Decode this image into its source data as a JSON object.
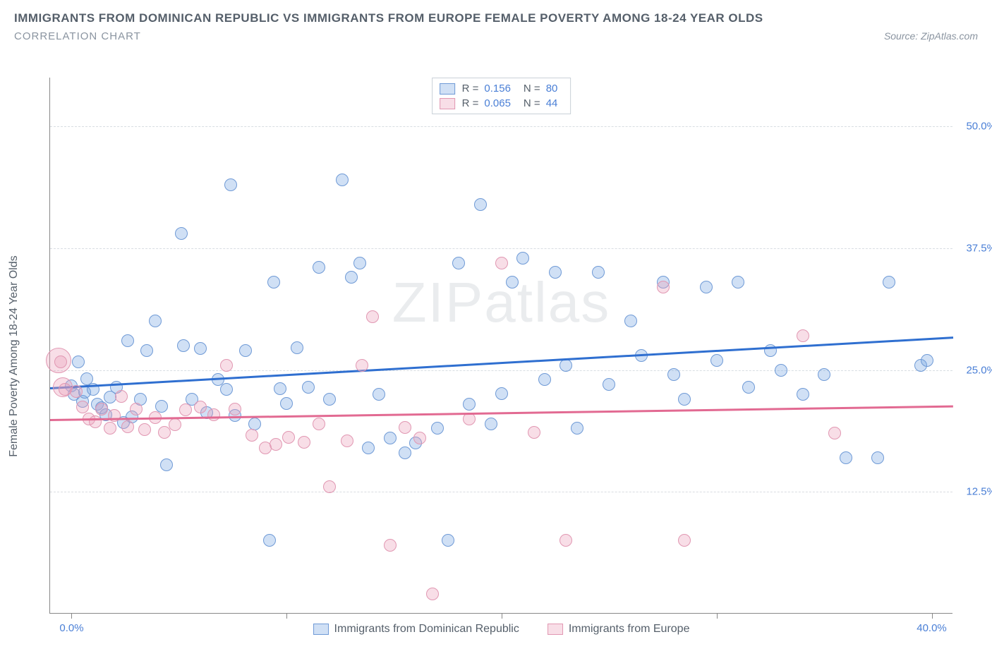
{
  "header": {
    "title": "IMMIGRANTS FROM DOMINICAN REPUBLIC VS IMMIGRANTS FROM EUROPE FEMALE POVERTY AMONG 18-24 YEAR OLDS",
    "subtitle": "CORRELATION CHART",
    "source": "Source: ZipAtlas.com"
  },
  "watermark": "ZIPatlas",
  "chart": {
    "type": "scatter",
    "y_axis_label": "Female Poverty Among 18-24 Year Olds",
    "background_color": "#ffffff",
    "grid_color": "#d8dde2",
    "axis_color": "#888888",
    "tick_label_color": "#4a7fd6",
    "text_color": "#555f6a",
    "x_range": [
      -1,
      41
    ],
    "y_range": [
      0,
      55
    ],
    "y_ticks": [
      12.5,
      25.0,
      37.5,
      50.0
    ],
    "y_tick_labels": [
      "12.5%",
      "25.0%",
      "37.5%",
      "50.0%"
    ],
    "x_ticks": [
      0,
      10,
      20,
      30,
      40
    ],
    "x_tick_labels": [
      "0.0%",
      "",
      "",
      "",
      "40.0%"
    ],
    "point_radius": 9,
    "point_border_width": 1.5,
    "series": [
      {
        "name": "Immigrants from Dominican Republic",
        "fill": "rgba(120,165,225,0.35)",
        "stroke": "#6f9ad6",
        "trend_color": "#2f6fd0",
        "R": "0.156",
        "N": "80",
        "trend": {
          "y_at_xmin": 23.2,
          "y_at_xmax": 28.4
        },
        "points": [
          [
            0.0,
            23.4
          ],
          [
            0.1,
            22.5
          ],
          [
            0.3,
            25.8
          ],
          [
            0.5,
            21.8
          ],
          [
            0.6,
            22.7
          ],
          [
            0.7,
            24.1
          ],
          [
            1.0,
            23.0
          ],
          [
            1.2,
            21.5
          ],
          [
            1.4,
            21.1
          ],
          [
            1.6,
            20.4
          ],
          [
            1.8,
            22.2
          ],
          [
            2.1,
            23.2
          ],
          [
            2.4,
            19.6
          ],
          [
            2.6,
            28.0
          ],
          [
            2.8,
            20.2
          ],
          [
            3.2,
            22.0
          ],
          [
            3.5,
            27.0
          ],
          [
            3.9,
            30.0
          ],
          [
            4.2,
            21.3
          ],
          [
            4.4,
            15.3
          ],
          [
            5.1,
            39.0
          ],
          [
            5.2,
            27.5
          ],
          [
            5.6,
            22.0
          ],
          [
            6.0,
            27.2
          ],
          [
            6.3,
            20.6
          ],
          [
            6.8,
            24.0
          ],
          [
            7.2,
            23.0
          ],
          [
            7.4,
            44.0
          ],
          [
            7.6,
            20.3
          ],
          [
            8.1,
            27.0
          ],
          [
            8.5,
            19.5
          ],
          [
            9.2,
            7.5
          ],
          [
            9.4,
            34.0
          ],
          [
            9.7,
            23.1
          ],
          [
            10.0,
            21.6
          ],
          [
            10.5,
            27.3
          ],
          [
            11.0,
            23.2
          ],
          [
            11.5,
            35.5
          ],
          [
            12.0,
            22.0
          ],
          [
            12.6,
            44.5
          ],
          [
            13.0,
            34.5
          ],
          [
            13.4,
            36.0
          ],
          [
            13.8,
            17.0
          ],
          [
            14.3,
            22.5
          ],
          [
            14.8,
            18.0
          ],
          [
            15.5,
            16.5
          ],
          [
            16.0,
            17.5
          ],
          [
            17.0,
            19.0
          ],
          [
            17.5,
            7.5
          ],
          [
            18.0,
            36.0
          ],
          [
            18.5,
            21.5
          ],
          [
            19.0,
            42.0
          ],
          [
            19.5,
            19.5
          ],
          [
            20.0,
            22.6
          ],
          [
            20.5,
            34.0
          ],
          [
            21.0,
            36.5
          ],
          [
            22.0,
            24.0
          ],
          [
            22.5,
            35.0
          ],
          [
            23.0,
            25.5
          ],
          [
            23.5,
            19.0
          ],
          [
            24.5,
            35.0
          ],
          [
            25.0,
            23.5
          ],
          [
            26.0,
            30.0
          ],
          [
            26.5,
            26.5
          ],
          [
            27.5,
            34.0
          ],
          [
            28.0,
            24.5
          ],
          [
            28.5,
            22.0
          ],
          [
            29.5,
            33.5
          ],
          [
            30.0,
            26.0
          ],
          [
            31.0,
            34.0
          ],
          [
            31.5,
            23.2
          ],
          [
            32.5,
            27.0
          ],
          [
            33.0,
            25.0
          ],
          [
            34.0,
            22.5
          ],
          [
            35.0,
            24.5
          ],
          [
            36.0,
            16.0
          ],
          [
            37.5,
            16.0
          ],
          [
            38.0,
            34.0
          ],
          [
            39.5,
            25.5
          ],
          [
            39.8,
            26.0
          ]
        ]
      },
      {
        "name": "Immigrants from Europe",
        "fill": "rgba(235,160,185,0.35)",
        "stroke": "#e197b2",
        "trend_color": "#e26a92",
        "R": "0.065",
        "N": "44",
        "trend": {
          "y_at_xmin": 20.0,
          "y_at_xmax": 21.4
        },
        "points": [
          [
            -0.5,
            25.8
          ],
          [
            -0.3,
            23.0
          ],
          [
            0.2,
            22.8
          ],
          [
            0.5,
            21.2
          ],
          [
            0.8,
            20.0
          ],
          [
            1.1,
            19.7
          ],
          [
            1.4,
            21.0
          ],
          [
            1.8,
            19.0
          ],
          [
            2.0,
            20.3
          ],
          [
            2.3,
            22.3
          ],
          [
            2.6,
            19.2
          ],
          [
            3.0,
            21.0
          ],
          [
            3.4,
            18.9
          ],
          [
            3.9,
            20.1
          ],
          [
            4.3,
            18.6
          ],
          [
            4.8,
            19.4
          ],
          [
            5.3,
            20.9
          ],
          [
            6.0,
            21.2
          ],
          [
            6.6,
            20.4
          ],
          [
            7.2,
            25.5
          ],
          [
            7.6,
            21.0
          ],
          [
            8.4,
            18.3
          ],
          [
            9.0,
            17.0
          ],
          [
            9.5,
            17.4
          ],
          [
            10.1,
            18.1
          ],
          [
            10.8,
            17.6
          ],
          [
            11.5,
            19.5
          ],
          [
            12.0,
            13.0
          ],
          [
            12.8,
            17.7
          ],
          [
            13.5,
            25.5
          ],
          [
            14.0,
            30.5
          ],
          [
            14.8,
            7.0
          ],
          [
            15.5,
            19.1
          ],
          [
            16.2,
            18.0
          ],
          [
            16.8,
            2.0
          ],
          [
            18.5,
            20.0
          ],
          [
            20.0,
            36.0
          ],
          [
            21.5,
            18.6
          ],
          [
            23.0,
            7.5
          ],
          [
            27.5,
            33.5
          ],
          [
            28.5,
            7.5
          ],
          [
            34.0,
            28.5
          ],
          [
            35.5,
            18.5
          ]
        ],
        "large_points": [
          {
            "x": -0.6,
            "y": 26.0,
            "r": 18
          },
          {
            "x": -0.4,
            "y": 23.2,
            "r": 14
          }
        ]
      }
    ],
    "legend_bottom": [
      {
        "swatch_fill": "rgba(120,165,225,0.35)",
        "swatch_stroke": "#6f9ad6",
        "label": "Immigrants from Dominican Republic"
      },
      {
        "swatch_fill": "rgba(235,160,185,0.35)",
        "swatch_stroke": "#e197b2",
        "label": "Immigrants from Europe"
      }
    ]
  }
}
